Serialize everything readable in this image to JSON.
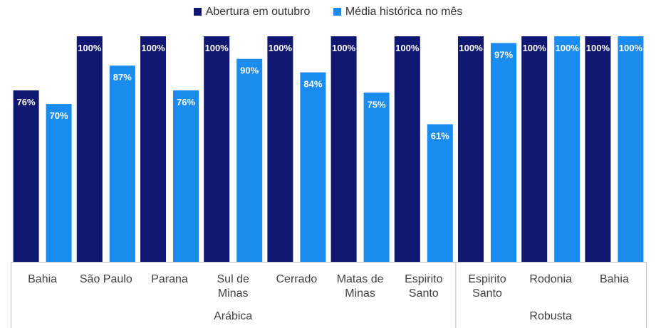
{
  "chart_data": {
    "type": "bar",
    "title": "",
    "xlabel": "",
    "ylabel": "",
    "ylim": [
      0,
      100
    ],
    "grid": false,
    "legend_position": "top-center",
    "categories": [
      "Bahia",
      "São Paulo",
      "Parana",
      "Sul de Minas",
      "Cerrado",
      "Matas de Minas",
      "Espirito Santo",
      "Espirito Santo",
      "Rodonia",
      "Bahia"
    ],
    "category_lines": [
      [
        "Bahia"
      ],
      [
        "São Paulo"
      ],
      [
        "Parana"
      ],
      [
        "Sul de",
        "Minas"
      ],
      [
        "Cerrado"
      ],
      [
        "Matas de",
        "Minas"
      ],
      [
        "Espirito",
        "Santo"
      ],
      [
        "Espirito",
        "Santo"
      ],
      [
        "Rodonia"
      ],
      [
        "Bahia"
      ]
    ],
    "groups": [
      {
        "label": "Arábica",
        "start": 0,
        "end": 6
      },
      {
        "label": "Robusta",
        "start": 7,
        "end": 9
      }
    ],
    "series": [
      {
        "name": "Abertura em outubro",
        "color": "#101770",
        "values": [
          76,
          100,
          100,
          100,
          100,
          100,
          100,
          100,
          100,
          100
        ],
        "labels": [
          "76%",
          "100%",
          "100%",
          "100%",
          "100%",
          "100%",
          "100%",
          "100%",
          "100%",
          "100%"
        ]
      },
      {
        "name": "Média histórica no mês",
        "color": "#1a8cf0",
        "values": [
          70,
          87,
          76,
          90,
          84,
          75,
          61,
          97,
          100,
          100
        ],
        "labels": [
          "70%",
          "87%",
          "76%",
          "90%",
          "84%",
          "75%",
          "61%",
          "97%",
          "100%",
          "100%"
        ]
      }
    ]
  }
}
